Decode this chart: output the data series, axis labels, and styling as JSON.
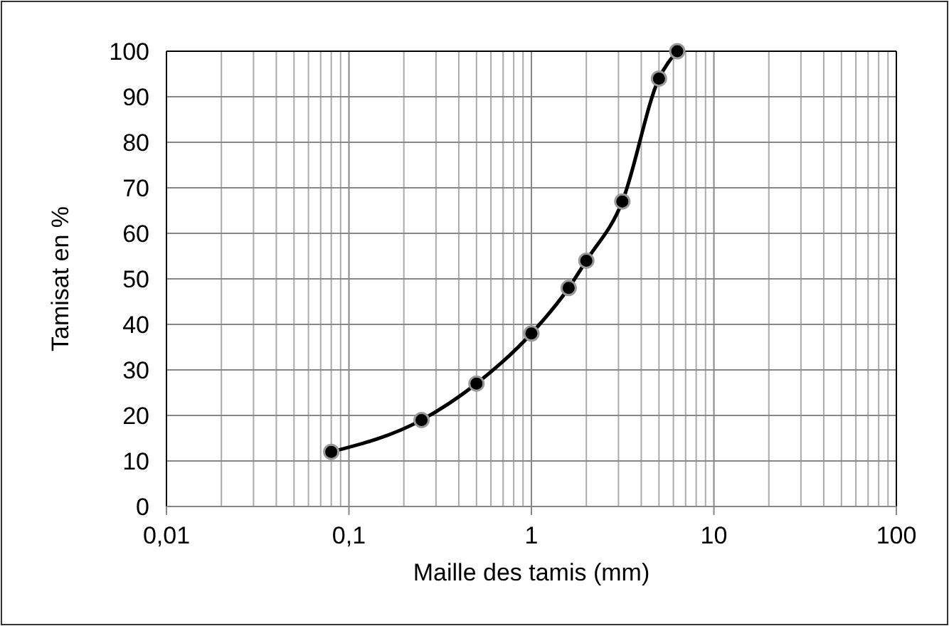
{
  "chart_data": {
    "type": "line",
    "xlabel": "Maille des tamis (mm)",
    "ylabel": "Tamisat en %",
    "log": "x",
    "xlim": [
      0.01,
      100
    ],
    "xticks": [
      {
        "value": 0.01,
        "label": "0,01"
      },
      {
        "value": 0.1,
        "label": "0,1"
      },
      1,
      10,
      100
    ],
    "ylim": [
      0,
      100
    ],
    "yticks": [
      0,
      10,
      20,
      30,
      40,
      50,
      60,
      70,
      80,
      90,
      100
    ],
    "grid": true,
    "marker": "circle",
    "line_style": "solid",
    "series": [
      {
        "color": "#000000",
        "x": [
          0.08,
          0.25,
          0.5,
          1,
          1.6,
          2,
          3.15,
          5,
          6.3
        ],
        "values": [
          12,
          19,
          27,
          38,
          48,
          54,
          67,
          94,
          100
        ]
      }
    ]
  }
}
